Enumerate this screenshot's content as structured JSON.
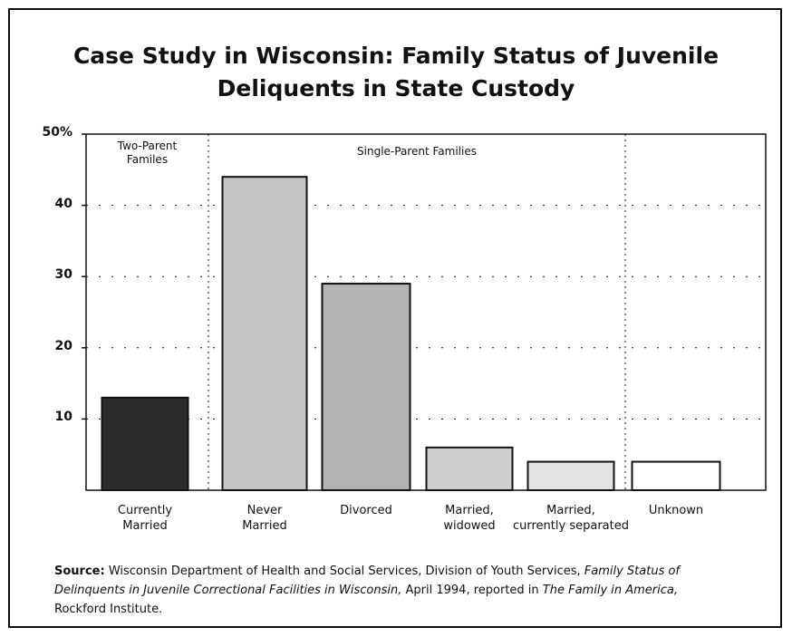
{
  "chart_data": {
    "type": "bar",
    "title": "Case Study in Wisconsin: Family Status of Juvenile Deliquents in State Custody",
    "groups": [
      "Two-Parent\nFamiles",
      "Single-Parent Families"
    ],
    "categories": [
      "Currently\nMarried",
      "Never\nMarried",
      "Divorced",
      "Married,\nwidowed",
      "Married,\ncurrently separated",
      "Unknown"
    ],
    "values": [
      13,
      44,
      29,
      6,
      4,
      4
    ],
    "colors": [
      "#2b2b2b",
      "#c4c4c4",
      "#b4b4b4",
      "#cfcfcf",
      "#e2e2e2",
      "#ffffff"
    ],
    "ylim": [
      0,
      50
    ],
    "yticks": [
      10,
      20,
      30,
      40,
      {
        "value": 50,
        "label": "50%"
      }
    ],
    "grid": true,
    "source": [
      "Source:",
      " Wisconsin Department of Health and Social Services, Division of Youth Services, ",
      "Family Status of Delinquents in Juvenile Correctional Facilities in Wisconsin,",
      " April 1994, reported in ",
      "The Family in America,",
      " Rockford Institute."
    ]
  }
}
